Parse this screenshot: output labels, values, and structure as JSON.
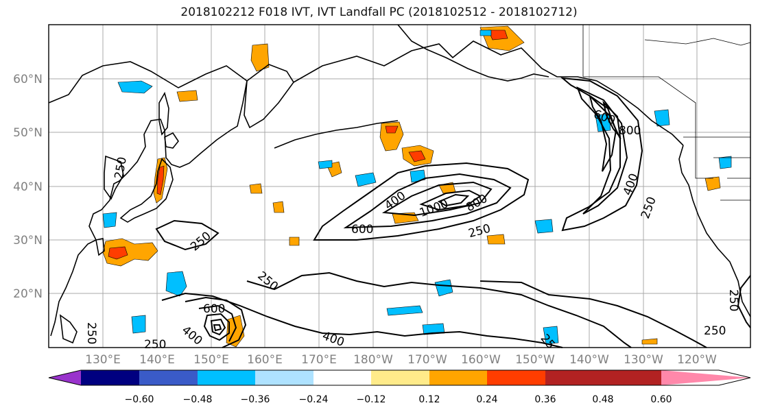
{
  "title": "2018102212 F018 IVT, IVT Landfall PC (2018102512 - 2018102712)",
  "lat_labels": [
    "60°N",
    "50°N",
    "40°N",
    "30°N",
    "20°N"
  ],
  "lon_labels": [
    "130°E",
    "140°E",
    "150°E",
    "160°E",
    "170°E",
    "180°W",
    "170°W",
    "160°W",
    "150°W",
    "140°W",
    "130°W",
    "120°W"
  ],
  "colorbar": {
    "colors": [
      "#9933cc",
      "#000080",
      "#3a5bc8",
      "#00bfff",
      "#aee2ff",
      "#ffffff",
      "#ffeb8a",
      "#ffa500",
      "#ff3d00",
      "#b22222",
      "#ff88aa"
    ],
    "tick_labels": [
      "−0.60",
      "−0.48",
      "−0.36",
      "−0.24",
      "−0.12",
      "0.12",
      "0.24",
      "0.36",
      "0.48",
      "0.60"
    ]
  },
  "contour_labels": {
    "c1": "250",
    "c2": "250",
    "c3": "400",
    "c4": "600",
    "c5": "1000",
    "c6": "800",
    "c7": "250",
    "c8": "600",
    "c9": "800",
    "c10": "400",
    "c11": "250",
    "c12": "250",
    "c13": "250",
    "c14": "250",
    "c15": "600",
    "c16": "400",
    "c17": "400",
    "c18": "25",
    "c19": "250",
    "c20": "250"
  }
}
